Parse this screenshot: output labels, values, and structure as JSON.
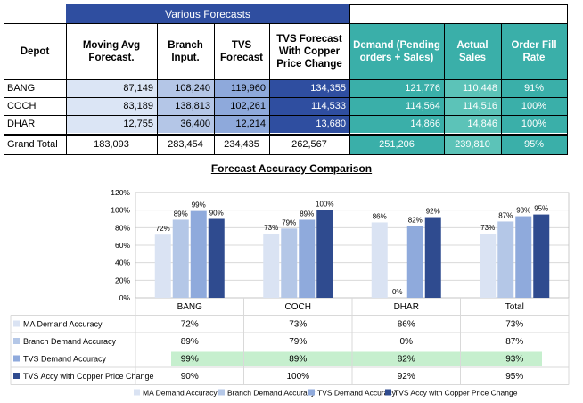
{
  "table": {
    "group_header": "Various Forecasts",
    "headers": [
      "Depot",
      "Moving Avg Forecast.",
      "Branch Input.",
      "TVS Forecast",
      "TVS Forecast With Copper Price Change",
      "Demand (Pending orders + Sales)",
      "Actual Sales",
      "Order Fill Rate"
    ],
    "rows": [
      [
        "BANG",
        "87,149",
        "108,240",
        "119,960",
        "134,355",
        "121,776",
        "110,448",
        "91%"
      ],
      [
        "COCH",
        "83,189",
        "138,813",
        "102,261",
        "114,533",
        "114,564",
        "114,516",
        "100%"
      ],
      [
        "DHAR",
        "12,755",
        "36,400",
        "12,214",
        "13,680",
        "14,866",
        "14,846",
        "100%"
      ]
    ],
    "total": [
      "Grand Total",
      "183,093",
      "283,454",
      "234,435",
      "262,567",
      "251,206",
      "239,810",
      "95%"
    ],
    "colors": {
      "group_header": "#2f4ea0",
      "light_blue": "#dbe5f5",
      "mid_blue": "#b4c6e7",
      "blue": "#8ea9db",
      "dark_blue": "#2f4ea0",
      "teal": "#3aafa9",
      "teal_light": "#5cc3b8"
    }
  },
  "chart_data": {
    "type": "bar",
    "title": "Forecast Accuracy Comparison",
    "categories": [
      "BANG",
      "COCH",
      "DHAR",
      "Total"
    ],
    "ylim": [
      0,
      120
    ],
    "yticks": [
      "0%",
      "20%",
      "40%",
      "60%",
      "80%",
      "100%",
      "120%"
    ],
    "ytick_values": [
      0,
      20,
      40,
      60,
      80,
      100,
      120
    ],
    "grid": true,
    "series": [
      {
        "name": "MA Demand Accuracy",
        "values": [
          72,
          73,
          86,
          73
        ],
        "labels": [
          "72%",
          "73%",
          "86%",
          "73%"
        ],
        "color": "#dae3f3"
      },
      {
        "name": "Branch Demand Accuracy",
        "values": [
          89,
          79,
          0,
          87
        ],
        "labels": [
          "89%",
          "79%",
          "0%",
          "87%"
        ],
        "color": "#b4c7e7"
      },
      {
        "name": "TVS Demand Accuracy",
        "values": [
          99,
          89,
          82,
          93
        ],
        "labels": [
          "99%",
          "89%",
          "82%",
          "93%"
        ],
        "color": "#8faadc"
      },
      {
        "name": "TVS Accy with Copper Price Change",
        "values": [
          90,
          100,
          92,
          95
        ],
        "labels": [
          "90%",
          "100%",
          "92%",
          "95%"
        ],
        "color": "#2f4b8f"
      }
    ],
    "highlight_row_color": "#c6efce"
  }
}
